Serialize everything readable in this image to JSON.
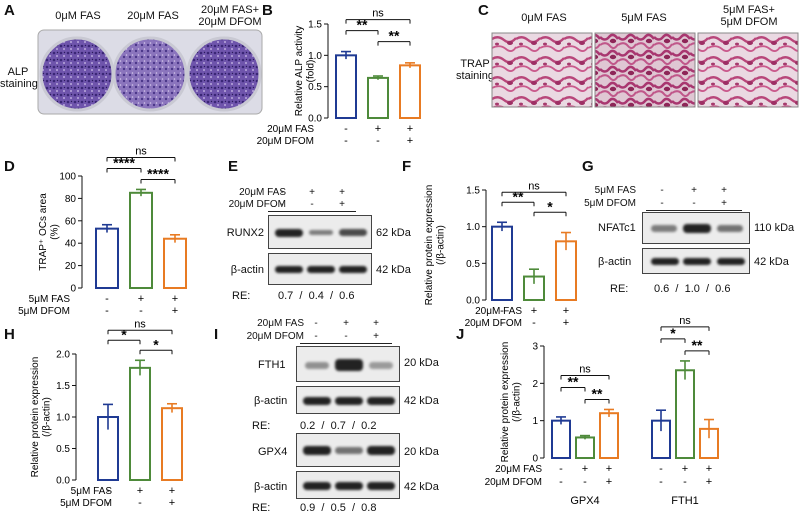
{
  "colors": {
    "blue": "#1f3a93",
    "green": "#4e8a3a",
    "orange": "#e87b23",
    "purple": "#5a3f9a",
    "stain": "#b8467a"
  },
  "labels": {
    "A": "A",
    "B": "B",
    "C": "C",
    "D": "D",
    "E": "E",
    "F": "F",
    "G": "G",
    "H": "H",
    "I": "I",
    "J": "J"
  },
  "panelA": {
    "col1": "0μM FAS",
    "col2": "20μM FAS",
    "col3a": "20μM FAS+",
    "col3b": "20μM DFOM",
    "row1": "ALP",
    "row2": "staining"
  },
  "panelC": {
    "col1": "0μM FAS",
    "col2": "5μM FAS",
    "col3a": "5μM FAS+",
    "col3b": "5μM DFOM",
    "row1": "TRAP",
    "row2": "staining"
  },
  "panelE": {
    "t1": "20μM FAS",
    "t2": "20μM DFOM",
    "r1": [
      "-",
      "+",
      "+"
    ],
    "r2": [
      "-",
      "-",
      "+"
    ],
    "b1": "RUNX2",
    "b2": "β-actin",
    "k1": "62 kDa",
    "k2": "42 kDa",
    "re": "RE:",
    "rev": "0.7  /  0.4  /  0.6"
  },
  "panelG": {
    "t1": "5μM FAS",
    "t2": "5μM DFOM",
    "r1": [
      "-",
      "+",
      "+"
    ],
    "r2": [
      "-",
      "-",
      "+"
    ],
    "b1": "NFATc1",
    "b2": "β-actin",
    "k1": "110 kDa",
    "k2": "42 kDa",
    "re": "RE:",
    "rev": "0.6  /  1.0  /  0.6"
  },
  "panelI": {
    "t1": "20μM FAS",
    "t2": "20μM DFOM",
    "r1": [
      "-",
      "+",
      "+"
    ],
    "r2": [
      "-",
      "-",
      "+"
    ],
    "b1": "FTH1",
    "b2": "β-actin",
    "b3": "GPX4",
    "b4": "β-actin",
    "k1": "20 kDa",
    "k2": "42 kDa",
    "k3": "20 kDa",
    "k4": "42 kDa",
    "re": "RE:",
    "rev1": "0.2  /  0.7  /  0.2",
    "rev2": "0.9  /  0.5  /  0.8"
  },
  "chart_data": [
    {
      "panel": "B",
      "type": "bar",
      "ylabel": "Relative ALP activity (fold)",
      "ylim": [
        0,
        1.5
      ],
      "yticks": [
        "0.0",
        "0.5",
        "1.0",
        "1.5"
      ],
      "categories": [
        "control",
        "FAS",
        "FAS+DFOM"
      ],
      "values": [
        1.0,
        0.64,
        0.84
      ],
      "errors": [
        0.06,
        0.03,
        0.04
      ],
      "treat1": "20μM FAS",
      "treat2": "20μM DFOM",
      "row1": [
        "-",
        "+",
        "+"
      ],
      "row2": [
        "-",
        "-",
        "+"
      ],
      "sig": [
        {
          "pair": [
            0,
            1
          ],
          "label": "**"
        },
        {
          "pair": [
            1,
            2
          ],
          "label": "**"
        },
        {
          "pair": [
            0,
            2
          ],
          "label": "ns"
        }
      ]
    },
    {
      "panel": "D",
      "type": "bar",
      "ylabel": "TRAP⁺ OCs area (%)",
      "ylim": [
        0,
        100
      ],
      "yticks": [
        "0",
        "20",
        "40",
        "60",
        "80",
        "100"
      ],
      "categories": [
        "control",
        "FAS",
        "FAS+DFOM"
      ],
      "values": [
        53,
        85,
        44
      ],
      "errors": [
        3.5,
        3,
        3.5
      ],
      "treat1": "5μM FAS",
      "treat2": "5μM DFOM",
      "row1": [
        "-",
        "+",
        "+"
      ],
      "row2": [
        "-",
        "-",
        "+"
      ],
      "sig": [
        {
          "pair": [
            0,
            1
          ],
          "label": "****"
        },
        {
          "pair": [
            1,
            2
          ],
          "label": "****"
        },
        {
          "pair": [
            0,
            2
          ],
          "label": "ns"
        }
      ]
    },
    {
      "panel": "F",
      "type": "bar",
      "ylabel": "Relative protein expression (/β-actin)",
      "ylim": [
        0,
        1.5
      ],
      "yticks": [
        "0.0",
        "0.5",
        "1.0",
        "1.5"
      ],
      "categories": [
        "control",
        "FAS",
        "FAS+DFOM"
      ],
      "values": [
        1.0,
        0.32,
        0.8
      ],
      "errors": [
        0.06,
        0.1,
        0.12
      ],
      "treat1": "20μM FAS",
      "treat2": "20μM DFOM",
      "row1": [
        "-",
        "+",
        "+"
      ],
      "row2": [
        "-",
        "-",
        "+"
      ],
      "sig": [
        {
          "pair": [
            0,
            1
          ],
          "label": "**"
        },
        {
          "pair": [
            1,
            2
          ],
          "label": "*"
        },
        {
          "pair": [
            0,
            2
          ],
          "label": "ns"
        }
      ]
    },
    {
      "panel": "H",
      "type": "bar",
      "ylabel": "Relative protein expression (/β-actin)",
      "ylim": [
        0,
        2.0
      ],
      "yticks": [
        "0.0",
        "0.5",
        "1.0",
        "1.5",
        "2.0"
      ],
      "categories": [
        "control",
        "FAS",
        "FAS+DFOM"
      ],
      "values": [
        1.0,
        1.78,
        1.14
      ],
      "errors": [
        0.2,
        0.12,
        0.07
      ],
      "treat1": "5μM FAS",
      "treat2": "5μM DFOM",
      "row1": [
        "-",
        "+",
        "+"
      ],
      "row2": [
        "-",
        "-",
        "+"
      ],
      "sig": [
        {
          "pair": [
            0,
            1
          ],
          "label": "*"
        },
        {
          "pair": [
            1,
            2
          ],
          "label": "*"
        },
        {
          "pair": [
            0,
            2
          ],
          "label": "ns"
        }
      ]
    },
    {
      "panel": "J",
      "type": "bar",
      "ylabel": "Relative protein expression (/β-actin)",
      "ylim": [
        0,
        3
      ],
      "yticks": [
        "0",
        "1",
        "2",
        "3"
      ],
      "groups": [
        "GPX4",
        "FTH1"
      ],
      "categories": [
        "control",
        "FAS",
        "FAS+DFOM"
      ],
      "values": [
        [
          1.0,
          0.55,
          1.2
        ],
        [
          1.0,
          2.35,
          0.78
        ]
      ],
      "errors": [
        [
          0.1,
          0.05,
          0.1
        ],
        [
          0.28,
          0.25,
          0.25
        ]
      ],
      "treat1": "20μM FAS",
      "treat2": "20μM DFOM",
      "row1": [
        "-",
        "+",
        "+"
      ],
      "row2": [
        "-",
        "-",
        "+"
      ],
      "sig": [
        {
          "group": 0,
          "pair": [
            0,
            1
          ],
          "label": "**"
        },
        {
          "group": 0,
          "pair": [
            1,
            2
          ],
          "label": "**"
        },
        {
          "group": 0,
          "pair": [
            0,
            2
          ],
          "label": "ns"
        },
        {
          "group": 1,
          "pair": [
            0,
            1
          ],
          "label": "*"
        },
        {
          "group": 1,
          "pair": [
            1,
            2
          ],
          "label": "**"
        },
        {
          "group": 1,
          "pair": [
            0,
            2
          ],
          "label": "ns"
        }
      ]
    }
  ]
}
